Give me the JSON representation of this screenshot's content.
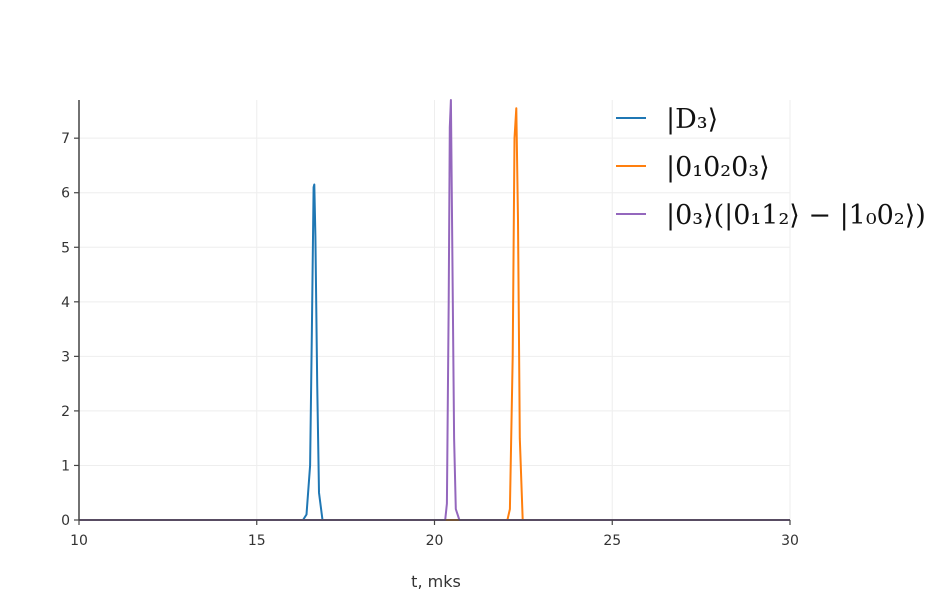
{
  "chart_data": {
    "type": "line",
    "xlabel": "t, mks",
    "ylabel": "",
    "xlim": [
      10,
      30
    ],
    "ylim": [
      0,
      7.7
    ],
    "xticks": [
      "10",
      "15",
      "20",
      "25",
      "30"
    ],
    "yticks": [
      "0",
      "1",
      "2",
      "3",
      "4",
      "5",
      "6",
      "7"
    ],
    "grid": true,
    "legend_position": "top-right",
    "series": [
      {
        "name": "|D₃⟩",
        "color": "#1f77b4",
        "x": [
          10,
          16.3,
          16.4,
          16.5,
          16.55,
          16.6,
          16.62,
          16.65,
          16.7,
          16.75,
          16.85,
          30
        ],
        "y": [
          0,
          0,
          0.1,
          1.0,
          3.5,
          6.1,
          6.15,
          5.2,
          2.5,
          0.5,
          0,
          0
        ]
      },
      {
        "name": "|0₁0₂0₃⟩",
        "color": "#ff7f0e",
        "x": [
          10,
          22.05,
          22.12,
          22.2,
          22.25,
          22.3,
          22.35,
          22.4,
          22.48,
          30
        ],
        "y": [
          0,
          0,
          0.2,
          3.0,
          7.0,
          7.55,
          5.5,
          1.5,
          0,
          0
        ]
      },
      {
        "name": "|0₃⟩(|0₁1₂⟩ − |1₀0₂⟩)",
        "color": "#9467bd",
        "x": [
          10,
          20.3,
          20.35,
          20.4,
          20.43,
          20.46,
          20.5,
          20.55,
          20.6,
          20.7,
          30
        ],
        "y": [
          0,
          0,
          0.3,
          4.0,
          7.2,
          7.7,
          5.0,
          1.5,
          0.2,
          0,
          0
        ]
      }
    ]
  }
}
